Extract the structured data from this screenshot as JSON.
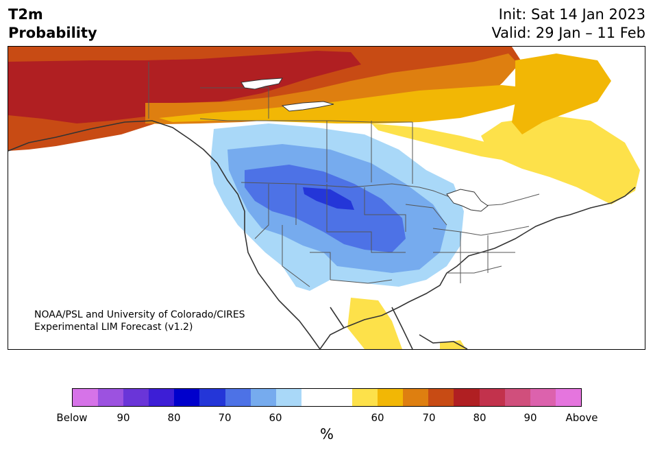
{
  "header": {
    "title_line1": "T2m",
    "title_line2": "Probability",
    "init_text": "Init: Sat 14 Jan 2023",
    "valid_text": "Valid: 29 Jan – 11 Feb"
  },
  "map": {
    "credit_line1": "NOAA/PSL and University of Colorado/CIRES",
    "credit_line2": "Experimental LIM Forecast (v1.2)"
  },
  "colorbar": {
    "colors": [
      "#d673e8",
      "#9c52e0",
      "#6a35d8",
      "#3d1ed6",
      "#0000cc",
      "#2436d8",
      "#4d72e6",
      "#76abee",
      "#a9d8f8",
      "#ffffff",
      "#ffffff",
      "#fde14a",
      "#f2b705",
      "#de7f10",
      "#c84b14",
      "#b01f22",
      "#c2324c",
      "#d04f7c",
      "#dc62ad",
      "#e575de"
    ],
    "tick_labels": [
      "Below",
      "90",
      "80",
      "70",
      "60",
      "60",
      "70",
      "80",
      "90",
      "Above"
    ],
    "unit": "%"
  }
}
